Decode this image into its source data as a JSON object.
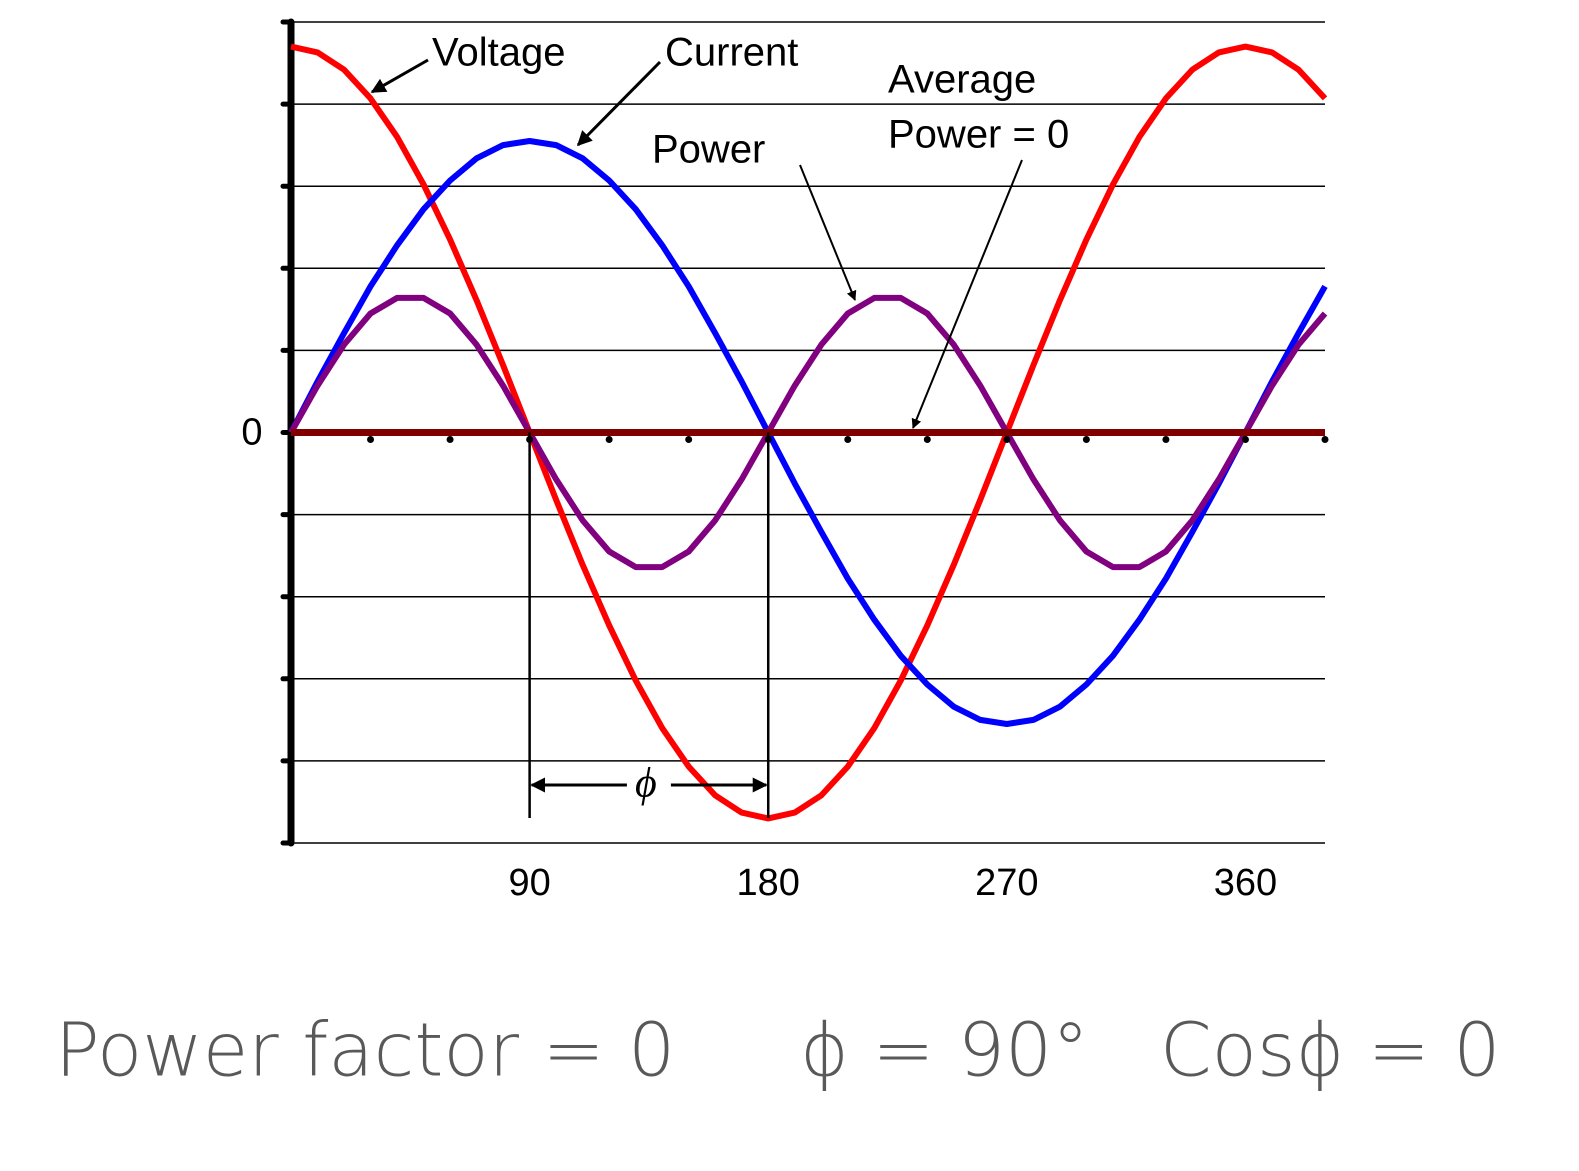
{
  "chart_data": {
    "type": "line",
    "x": [
      0,
      10,
      20,
      30,
      40,
      50,
      60,
      70,
      80,
      90,
      100,
      110,
      120,
      130,
      140,
      150,
      160,
      170,
      180,
      190,
      200,
      210,
      220,
      230,
      240,
      250,
      260,
      270,
      280,
      290,
      300,
      310,
      320,
      330,
      340,
      350,
      360,
      370,
      380,
      390
    ],
    "xlim": [
      0,
      390
    ],
    "xticks": [
      90,
      180,
      270,
      360
    ],
    "xminor": [
      30,
      60,
      90,
      120,
      150,
      180,
      210,
      240,
      270,
      300,
      330,
      360,
      390
    ],
    "ylim": [
      -5,
      5
    ],
    "yticks": [
      {
        "value": -5,
        "label": null
      },
      {
        "value": -4,
        "label": null
      },
      {
        "value": -3,
        "label": null
      },
      {
        "value": -2,
        "label": null
      },
      {
        "value": -1,
        "label": null
      },
      0,
      {
        "value": 1,
        "label": null
      },
      {
        "value": 2,
        "label": null
      },
      {
        "value": 3,
        "label": null
      },
      {
        "value": 4,
        "label": null
      },
      {
        "value": 5,
        "label": null
      }
    ],
    "grid": true,
    "series": [
      {
        "name": "Voltage",
        "color": "#ff0000",
        "values": [
          4.7,
          4.63,
          4.42,
          4.07,
          3.6,
          3.02,
          2.35,
          1.61,
          0.82,
          0,
          -0.82,
          -1.61,
          -2.35,
          -3.02,
          -3.6,
          -4.07,
          -4.42,
          -4.63,
          -4.7,
          -4.63,
          -4.42,
          -4.07,
          -3.6,
          -3.02,
          -2.35,
          -1.61,
          -0.82,
          0,
          0.82,
          1.61,
          2.35,
          3.02,
          3.6,
          4.07,
          4.42,
          4.63,
          4.7,
          4.63,
          4.42,
          4.07
        ]
      },
      {
        "name": "Current",
        "color": "#0000ff",
        "values": [
          0,
          0.62,
          1.21,
          1.78,
          2.28,
          2.72,
          3.07,
          3.34,
          3.5,
          3.55,
          3.5,
          3.34,
          3.07,
          2.72,
          2.28,
          1.78,
          1.21,
          0.62,
          0,
          -0.62,
          -1.21,
          -1.78,
          -2.28,
          -2.72,
          -3.07,
          -3.34,
          -3.5,
          -3.55,
          -3.5,
          -3.34,
          -3.07,
          -2.72,
          -2.28,
          -1.78,
          -1.21,
          -0.62,
          0,
          0.62,
          1.21,
          1.78
        ]
      },
      {
        "name": "Power",
        "color": "#800080",
        "values": [
          0,
          0.57,
          1.07,
          1.45,
          1.64,
          1.64,
          1.45,
          1.07,
          0.57,
          0,
          -0.57,
          -1.07,
          -1.45,
          -1.64,
          -1.64,
          -1.45,
          -1.07,
          -0.57,
          0,
          0.57,
          1.07,
          1.45,
          1.64,
          1.64,
          1.45,
          1.07,
          0.57,
          0,
          -0.57,
          -1.07,
          -1.45,
          -1.64,
          -1.64,
          -1.45,
          -1.07,
          -0.57,
          0,
          0.57,
          1.07,
          1.45
        ]
      }
    ],
    "average_power": [
      "Average",
      "Power = 0"
    ],
    "phi": {
      "label": "ϕ",
      "span": [
        90,
        180
      ]
    }
  },
  "caption": [
    "Power factor = 0",
    "ϕ = 90°",
    "Cosϕ = 0"
  ]
}
